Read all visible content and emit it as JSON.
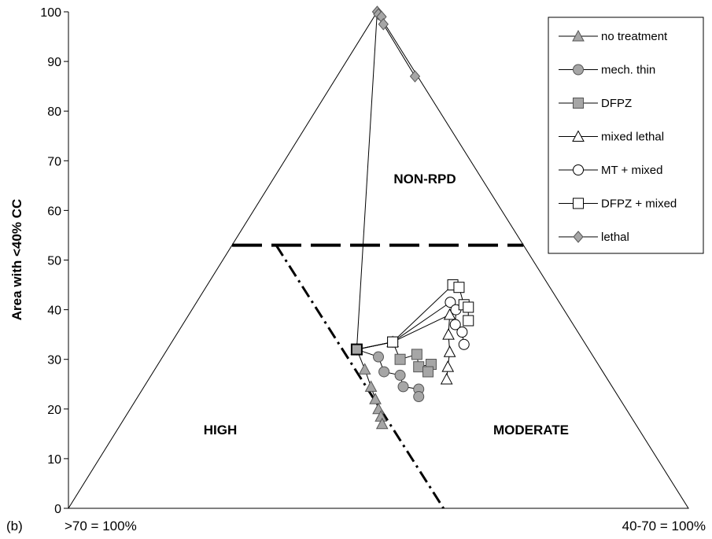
{
  "chart_data": {
    "type": "scatter",
    "panel_label": "(b)",
    "ylabel": "Area with <40% CC",
    "ylim": [
      0,
      100
    ],
    "yticks": [
      0,
      10,
      20,
      30,
      40,
      50,
      60,
      70,
      80,
      90,
      100
    ],
    "corner_labels": {
      "left": ">70 = 100%",
      "right": "40-70 = 100%"
    },
    "regions": [
      {
        "name": "high",
        "label": "HIGH"
      },
      {
        "name": "moderate",
        "label": "MODERATE"
      },
      {
        "name": "non-rpd",
        "label": "NON-RPD"
      }
    ],
    "threshold_line": {
      "y": 53,
      "style": "dashed"
    },
    "boundary_line": {
      "style": "dash-dot",
      "from": [
        0.335,
        53
      ],
      "to": [
        0.605,
        0
      ]
    },
    "x_note": "x is the fraction of the base from the '>70 = 100%' corner (0) to the '40-70 = 100%' corner (1)",
    "start_point": {
      "x": 0.465,
      "y": 32
    },
    "series": [
      {
        "name": "no treatment",
        "marker": "triangle",
        "fill": "#a6a6a6",
        "points": [
          [
            0.465,
            32
          ],
          [
            0.478,
            28
          ],
          [
            0.488,
            24.5
          ],
          [
            0.495,
            22
          ],
          [
            0.5,
            20
          ],
          [
            0.504,
            18.5
          ],
          [
            0.506,
            17
          ]
        ]
      },
      {
        "name": "mech. thin",
        "marker": "circle",
        "fill": "#a6a6a6",
        "points": [
          [
            0.465,
            32
          ],
          [
            0.5,
            30.5
          ],
          [
            0.509,
            27.5
          ],
          [
            0.535,
            26.8
          ],
          [
            0.54,
            24.5
          ],
          [
            0.565,
            24
          ],
          [
            0.565,
            22.5
          ]
        ]
      },
      {
        "name": "DFPZ",
        "marker": "square",
        "fill": "#a6a6a6",
        "points": [
          [
            0.465,
            32
          ],
          [
            0.523,
            33.5
          ],
          [
            0.535,
            30
          ],
          [
            0.562,
            31
          ],
          [
            0.565,
            28.5
          ],
          [
            0.585,
            29
          ],
          [
            0.58,
            27.5
          ]
        ]
      },
      {
        "name": "mixed lethal",
        "marker": "triangle",
        "fill": "#ffffff",
        "points": [
          [
            0.465,
            32
          ],
          [
            0.523,
            33.5
          ],
          [
            0.615,
            39
          ],
          [
            0.613,
            35
          ],
          [
            0.615,
            31.5
          ],
          [
            0.612,
            28.5
          ],
          [
            0.61,
            26
          ]
        ]
      },
      {
        "name": "MT + mixed",
        "marker": "circle",
        "fill": "#ffffff",
        "points": [
          [
            0.465,
            32
          ],
          [
            0.523,
            33.5
          ],
          [
            0.616,
            41.5
          ],
          [
            0.625,
            40
          ],
          [
            0.624,
            37
          ],
          [
            0.635,
            35.5
          ],
          [
            0.638,
            33
          ]
        ]
      },
      {
        "name": "DFPZ + mixed",
        "marker": "square",
        "fill": "#ffffff",
        "points": [
          [
            0.465,
            32
          ],
          [
            0.523,
            33.5
          ],
          [
            0.62,
            45
          ],
          [
            0.63,
            44.5
          ],
          [
            0.638,
            41
          ],
          [
            0.645,
            40.5
          ],
          [
            0.645,
            37.8
          ]
        ]
      },
      {
        "name": "lethal",
        "marker": "diamond",
        "fill": "#a6a6a6",
        "points": [
          [
            0.465,
            32
          ],
          [
            0.498,
            100
          ],
          [
            0.5,
            99.5
          ],
          [
            0.505,
            99
          ],
          [
            0.508,
            97.5
          ],
          [
            0.559,
            87
          ]
        ]
      }
    ]
  }
}
